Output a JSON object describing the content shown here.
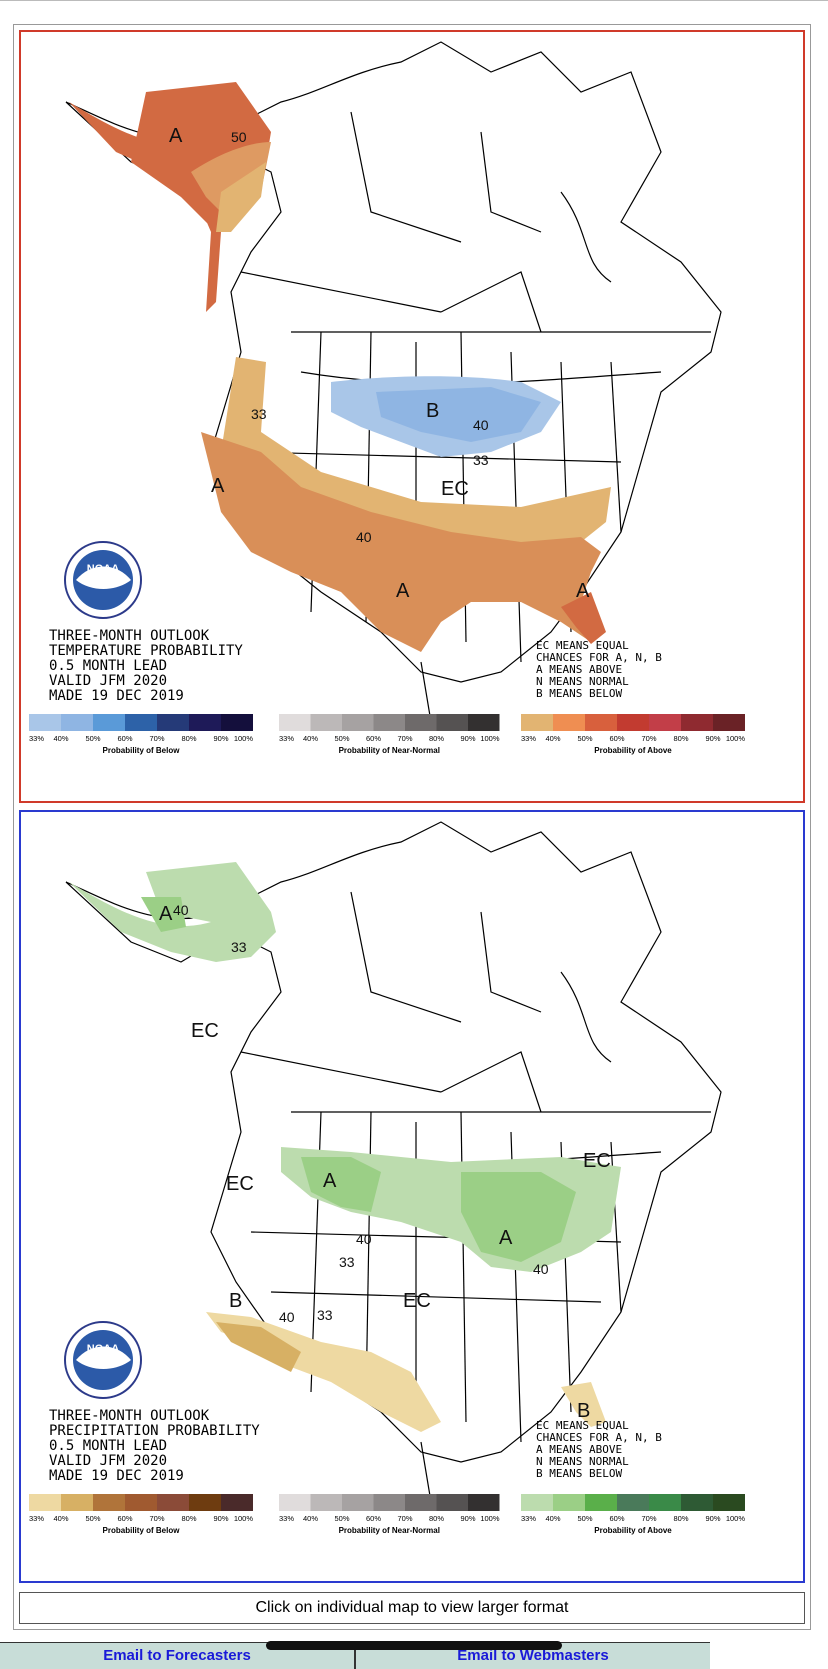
{
  "maps": [
    {
      "id": "temperature",
      "text_lines": [
        "THREE-MONTH OUTLOOK",
        "TEMPERATURE PROBABILITY",
        "0.5 MONTH LEAD",
        "VALID JFM 2020",
        "MADE 19 DEC 2019"
      ],
      "legend_lines": [
        "EC MEANS EQUAL",
        "CHANCES FOR A, N, B",
        "A MEANS ABOVE",
        "N MEANS NORMAL",
        "B MEANS BELOW"
      ],
      "region_labels": [
        "A",
        "50",
        "33",
        "A",
        "40",
        "A",
        "A",
        "B",
        "40",
        "33",
        "EC"
      ],
      "colorbars": [
        {
          "title": "Probability of Below",
          "ticks": [
            "33%",
            "40%",
            "50%",
            "60%",
            "70%",
            "80%",
            "90%",
            "100%"
          ],
          "colors": [
            "#a9c6e8",
            "#8fb5e3",
            "#5a9ad8",
            "#2d62a8",
            "#253a78",
            "#1e1a58",
            "#140f3c"
          ]
        },
        {
          "title": "Probability of Near-Normal",
          "ticks": [
            "33%",
            "40%",
            "50%",
            "60%",
            "70%",
            "80%",
            "90%",
            "100%"
          ],
          "colors": [
            "#e0dcdc",
            "#bcb8b8",
            "#a6a2a2",
            "#8c8888",
            "#6e6a6a",
            "#555252",
            "#333030"
          ]
        },
        {
          "title": "Probability of Above",
          "ticks": [
            "33%",
            "40%",
            "50%",
            "60%",
            "70%",
            "80%",
            "90%",
            "100%"
          ],
          "colors": [
            "#e2b472",
            "#ef8e52",
            "#d8603d",
            "#c23b30",
            "#c23e48",
            "#8f2a30",
            "#6a2226"
          ]
        }
      ],
      "colors": {
        "above_33": "#e2b472",
        "above_40": "#de9a62",
        "above_50": "#d26a42",
        "below_33": "#a9c6e8",
        "below_40": "#8fb5e3"
      }
    },
    {
      "id": "precipitation",
      "text_lines": [
        "THREE-MONTH OUTLOOK",
        "PRECIPITATION PROBABILITY",
        "0.5 MONTH LEAD",
        "VALID JFM 2020",
        "MADE 19 DEC 2019"
      ],
      "legend_lines": [
        "EC MEANS EQUAL",
        "CHANCES FOR A, N, B",
        "A MEANS ABOVE",
        "N MEANS NORMAL",
        "B MEANS BELOW"
      ],
      "region_labels": [
        "A",
        "40",
        "33",
        "EC",
        "EC",
        "A",
        "40",
        "33",
        "A",
        "40",
        "EC",
        "B",
        "40",
        "33",
        "EC",
        "B"
      ],
      "colorbars": [
        {
          "title": "Probability of Below",
          "ticks": [
            "33%",
            "40%",
            "50%",
            "60%",
            "70%",
            "80%",
            "90%",
            "100%"
          ],
          "colors": [
            "#eed9a2",
            "#d7b064",
            "#b0743a",
            "#a05a30",
            "#8b4b38",
            "#6e3c10",
            "#4a2a2a"
          ]
        },
        {
          "title": "Probability of Near-Normal",
          "ticks": [
            "33%",
            "40%",
            "50%",
            "60%",
            "70%",
            "80%",
            "90%",
            "100%"
          ],
          "colors": [
            "#e0dcdc",
            "#bcb8b8",
            "#a6a2a2",
            "#8c8888",
            "#6e6a6a",
            "#555252",
            "#333030"
          ]
        },
        {
          "title": "Probability of Above",
          "ticks": [
            "33%",
            "40%",
            "50%",
            "60%",
            "70%",
            "80%",
            "90%",
            "100%"
          ],
          "colors": [
            "#bcdcae",
            "#9bcf86",
            "#5aaf4a",
            "#4a7a5a",
            "#3a8a48",
            "#2e5a34",
            "#2a4a20"
          ]
        }
      ],
      "colors": {
        "wet_33": "#bcdcae",
        "wet_40": "#9bcf86",
        "dry_33": "#eed9a2",
        "dry_40": "#d7b064"
      }
    }
  ],
  "caption": "Click on individual map to view larger format",
  "footer": {
    "forecasters": "Email to Forecasters",
    "webmasters": "Email to Webmasters"
  },
  "logo_text": "NOAA"
}
